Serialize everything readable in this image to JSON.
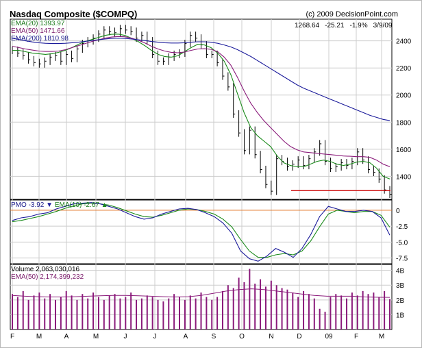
{
  "header": {
    "title": "Nasdaq Composite ($COMPQ)",
    "credit": "(c) 2009 DecisionPoint.com",
    "quote": {
      "last": "1268.64",
      "change": "-25.21",
      "pct": "-1.9%",
      "date": "3/9/09"
    }
  },
  "price_legend": [
    {
      "label": "EMA(20)",
      "value": "1393.97",
      "color": "#1a7a1a"
    },
    {
      "label": "EMA(50)",
      "value": "1471.66",
      "color": "#7a1a6a"
    },
    {
      "label": "EMA(200)",
      "value": "1810.98",
      "color": "#1a1a8a"
    }
  ],
  "pmo_legend": {
    "pmo_label": "PMO",
    "pmo_value": "-3.92",
    "pmo_arrow": "down",
    "ema_label": "EMA(10)",
    "ema_value": "-2.67",
    "ema_arrow": "up"
  },
  "volume_legend": {
    "vol_label": "Volume",
    "vol_value": "2,063,030,016",
    "ema_label": "EMA(50)",
    "ema_value": "2,174,399,232"
  },
  "colors": {
    "price_bars": "#000000",
    "ema20": "#1a8a1a",
    "ema50": "#8a1a7a",
    "ema200": "#1a1a9a",
    "pmo": "#1a1a9a",
    "pmo_ema": "#1a8a1a",
    "volume_bars": "#8a1a7a",
    "support_line": "#cc0000",
    "zero_line": "#e07020",
    "grid": "#cccccc"
  },
  "chart_data": [
    {
      "type": "line",
      "panel": "price",
      "y_ticks": [
        "2400",
        "2200",
        "2000",
        "1800",
        "1600",
        "1400"
      ],
      "ylim": [
        1230,
        2560
      ],
      "x_ticks": [
        "F",
        "M",
        "A",
        "M",
        "J",
        "J",
        "A",
        "S",
        "O",
        "N",
        "D",
        "09",
        "F",
        "M"
      ],
      "series": [
        {
          "name": "EMA(20)",
          "kind": "ema20",
          "values": [
            2330,
            2330,
            2320,
            2310,
            2305,
            2300,
            2305,
            2315,
            2330,
            2350,
            2375,
            2395,
            2410,
            2425,
            2440,
            2448,
            2450,
            2440,
            2420,
            2395,
            2365,
            2330,
            2300,
            2285,
            2280,
            2290,
            2320,
            2350,
            2375,
            2370,
            2350,
            2310,
            2250,
            2150,
            2010,
            1870,
            1760,
            1700,
            1660,
            1620,
            1550,
            1500,
            1480,
            1470,
            1470,
            1490,
            1510,
            1520,
            1510,
            1490,
            1480,
            1490,
            1505,
            1510,
            1500,
            1460,
            1400,
            1380
          ]
        },
        {
          "name": "EMA(50)",
          "kind": "ema50",
          "values": [
            2360,
            2350,
            2340,
            2332,
            2325,
            2322,
            2322,
            2325,
            2335,
            2350,
            2365,
            2380,
            2395,
            2408,
            2420,
            2428,
            2432,
            2430,
            2420,
            2405,
            2385,
            2360,
            2340,
            2325,
            2315,
            2312,
            2318,
            2330,
            2340,
            2342,
            2338,
            2320,
            2280,
            2220,
            2130,
            2030,
            1940,
            1870,
            1810,
            1760,
            1710,
            1660,
            1620,
            1595,
            1580,
            1575,
            1570,
            1565,
            1560,
            1555,
            1550,
            1548,
            1545,
            1545,
            1540,
            1520,
            1490,
            1471
          ]
        },
        {
          "name": "EMA(200)",
          "kind": "ema200",
          "values": [
            2420,
            2410,
            2400,
            2392,
            2386,
            2382,
            2380,
            2380,
            2382,
            2386,
            2390,
            2396,
            2402,
            2408,
            2414,
            2418,
            2420,
            2418,
            2414,
            2408,
            2402,
            2395,
            2390,
            2386,
            2384,
            2384,
            2386,
            2390,
            2393,
            2393,
            2390,
            2382,
            2370,
            2355,
            2335,
            2310,
            2285,
            2255,
            2225,
            2195,
            2165,
            2135,
            2105,
            2075,
            2050,
            2030,
            2010,
            1990,
            1970,
            1950,
            1930,
            1910,
            1890,
            1870,
            1850,
            1835,
            1820,
            1811
          ]
        }
      ],
      "bars_close": [
        2330,
        2310,
        2290,
        2260,
        2240,
        2230,
        2250,
        2280,
        2290,
        2250,
        2300,
        2270,
        2340,
        2380,
        2400,
        2420,
        2450,
        2480,
        2470,
        2460,
        2490,
        2480,
        2470,
        2420,
        2440,
        2400,
        2300,
        2250,
        2250,
        2280,
        2300,
        2310,
        2380,
        2440,
        2420,
        2370,
        2300,
        2300,
        2240,
        2140,
        2060,
        1860,
        1720,
        1590,
        1740,
        1560,
        1450,
        1340,
        1290,
        1530,
        1510,
        1470,
        1490,
        1520,
        1480,
        1530,
        1580,
        1640,
        1510,
        1460,
        1470,
        1500,
        1480,
        1510,
        1580,
        1520,
        1450,
        1430,
        1380,
        1300,
        1268
      ],
      "support_line": 1295
    },
    {
      "type": "line",
      "panel": "pmo",
      "y_ticks": [
        "0",
        "-2.5",
        "-5.0",
        "-7.5"
      ],
      "ylim": [
        -8.4,
        1.6
      ],
      "series": [
        {
          "name": "PMO",
          "kind": "pmo",
          "values": [
            -1.6,
            -1.2,
            -1.0,
            -0.6,
            -0.4,
            0.2,
            0.6,
            1.0,
            1.1,
            1.2,
            1.0,
            0.6,
            0.2,
            -0.4,
            -1.0,
            -1.4,
            -1.2,
            -0.6,
            -0.2,
            0.2,
            0.3,
            0.1,
            -0.4,
            -1.0,
            -2.0,
            -3.6,
            -6.4,
            -7.6,
            -8.0,
            -7.2,
            -6.0,
            -6.6,
            -7.4,
            -6.0,
            -3.8,
            -1.0,
            0.6,
            0.2,
            -0.2,
            -0.2,
            0.0,
            -0.2,
            -1.2,
            -3.92
          ]
        },
        {
          "name": "EMA(10)",
          "kind": "pmo_ema",
          "values": [
            -1.8,
            -1.6,
            -1.3,
            -1.0,
            -0.6,
            -0.2,
            0.3,
            0.7,
            1.0,
            1.1,
            1.0,
            0.8,
            0.4,
            -0.1,
            -0.6,
            -1.0,
            -1.1,
            -0.8,
            -0.4,
            0.0,
            0.2,
            0.1,
            -0.2,
            -0.6,
            -1.4,
            -2.6,
            -4.6,
            -6.4,
            -7.4,
            -7.4,
            -7.0,
            -6.8,
            -7.0,
            -6.4,
            -4.8,
            -2.6,
            -0.6,
            0.0,
            -0.2,
            -0.4,
            -0.2,
            -0.2,
            -0.8,
            -2.67
          ]
        }
      ]
    },
    {
      "type": "bar",
      "panel": "volume",
      "y_ticks": [
        "4B",
        "3B",
        "2B",
        "1B"
      ],
      "ylim": [
        0,
        4.4
      ],
      "series": [
        {
          "name": "Volume",
          "kind": "volume",
          "values": [
            2.4,
            2.2,
            2.6,
            2.0,
            2.3,
            2.5,
            2.1,
            2.4,
            2.0,
            2.2,
            2.6,
            2.3,
            2.0,
            2.4,
            2.1,
            2.5,
            2.2,
            2.0,
            2.3,
            2.4,
            2.1,
            2.2,
            2.5,
            2.0,
            2.1,
            2.3,
            2.2,
            2.0,
            1.9,
            2.1,
            2.4,
            2.2,
            2.0,
            2.3,
            2.1,
            2.5,
            2.2,
            2.0,
            2.2,
            2.6,
            3.0,
            2.8,
            3.5,
            3.2,
            4.1,
            3.1,
            3.4,
            2.9,
            3.3,
            3.0,
            2.8,
            2.7,
            2.5,
            2.2,
            2.6,
            2.4,
            2.1,
            1.4,
            1.2,
            2.2,
            2.4,
            2.3,
            2.1,
            2.5,
            2.3,
            2.6,
            2.4,
            2.5,
            2.2,
            2.6,
            2.06
          ]
        },
        {
          "name": "EMA(50)",
          "kind": "vol_ema",
          "values": [
            2.3,
            2.25,
            2.22,
            2.2,
            2.2,
            2.22,
            2.25,
            2.28,
            2.3,
            2.3,
            2.28,
            2.25,
            2.22,
            2.2,
            2.22,
            2.3,
            2.45,
            2.6,
            2.7,
            2.75,
            2.7,
            2.6,
            2.5,
            2.4,
            2.3,
            2.25,
            2.25,
            2.25,
            2.2,
            2.18,
            2.17
          ]
        }
      ]
    }
  ]
}
